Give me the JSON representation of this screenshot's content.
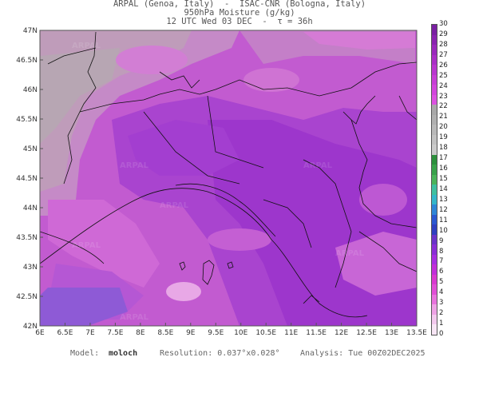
{
  "header": {
    "line1": "ARPAL (Genoa, Italy)  -  ISAC-CNR (Bologna, Italy)",
    "line2": "950hPa Moisture (g/kg)",
    "line3": "12 UTC Wed 03 DEC  -  τ = 36h"
  },
  "lat_labels": [
    "47N",
    "46.5N",
    "46N",
    "45.5N",
    "45N",
    "44.5N",
    "44N",
    "43.5N",
    "43N",
    "42.5N",
    "42N"
  ],
  "lon_labels": [
    "6E",
    "6.5E",
    "7E",
    "7.5E",
    "8E",
    "8.5E",
    "9E",
    "9.5E",
    "10E",
    "10.5E",
    "11E",
    "11.5E",
    "12E",
    "12.5E",
    "13E",
    "13.5E"
  ],
  "colorbar": {
    "ticks": [
      "30",
      "29",
      "28",
      "27",
      "26",
      "25",
      "24",
      "23",
      "22",
      "21",
      "20",
      "19",
      "18",
      "17",
      "16",
      "15",
      "14",
      "13",
      "12",
      "11",
      "10",
      "9",
      "8",
      "7",
      "6",
      "5",
      "4",
      "3",
      "2",
      "1",
      "0"
    ],
    "colors": [
      "#7a1fa2",
      "#8a23b0",
      "#9a29bc",
      "#aa2fc6",
      "#b936cf",
      "#c73ed6",
      "#d246dc",
      "#db52e0",
      "#a9a9a9",
      "#b0b0b0",
      "#b9b9b9",
      "#c2c2c2",
      "#cbcbcb",
      "#2d8f3c",
      "#3aa14a",
      "#4bb35a",
      "#3fbf9f",
      "#34b6c9",
      "#2f86d6",
      "#2b58d0",
      "#2f3fc0",
      "#6b33c9",
      "#8a2fd6",
      "#a72fe0",
      "#c22fd9",
      "#d93ad0",
      "#e04fd6",
      "#e873dd",
      "#eea2e5",
      "#f3c9ee",
      "#f8e6f6"
    ],
    "accent": "#b23fd3"
  },
  "footer": {
    "model_label": "Model:",
    "model_value": "moloch",
    "resolution": "Resolution: 0.037°x0.028°",
    "analysis": "Analysis: Tue 00Z02DEC2025"
  },
  "watermark": "ARPAL"
}
